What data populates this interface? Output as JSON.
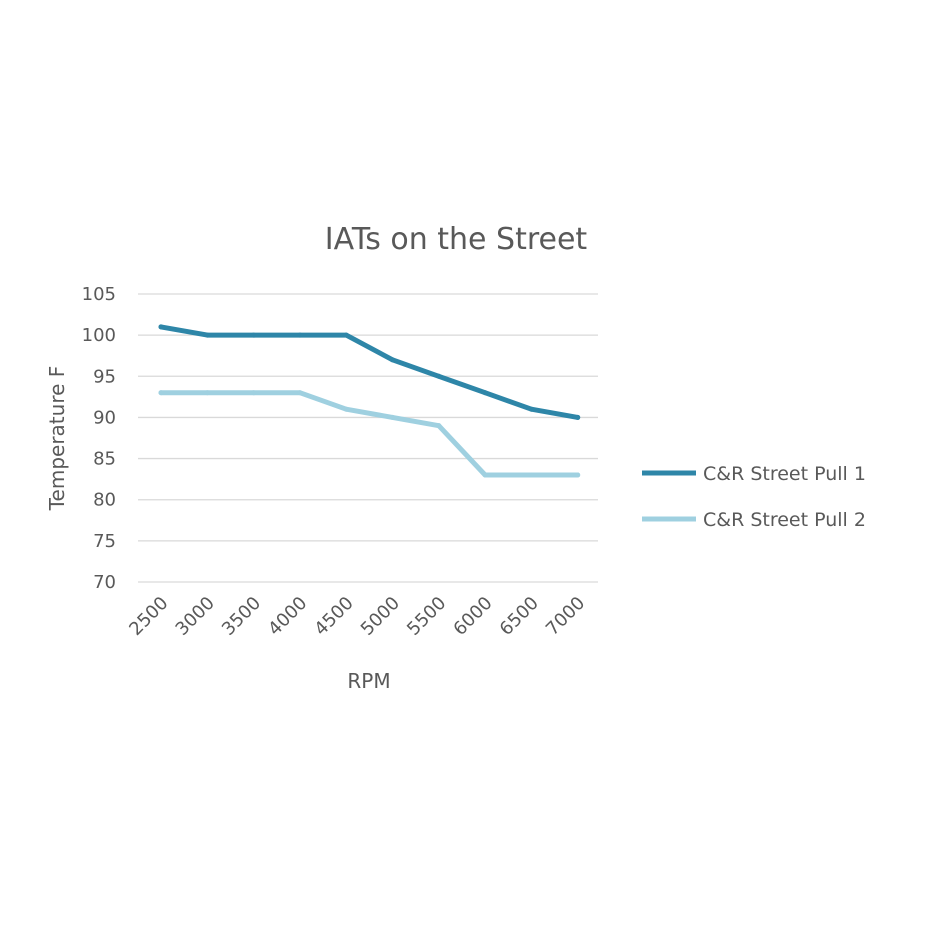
{
  "chart_data": {
    "type": "line",
    "title": "IATs on the Street",
    "xlabel": "RPM",
    "ylabel": "Temperature F",
    "categories": [
      "2500",
      "3000",
      "3500",
      "4000",
      "4500",
      "5000",
      "5500",
      "6000",
      "6500",
      "7000"
    ],
    "ylim": [
      70,
      105
    ],
    "yticks": [
      "70",
      "75",
      "80",
      "85",
      "90",
      "95",
      "100",
      "105"
    ],
    "grid": true,
    "legend_position": "right",
    "series": [
      {
        "name": "C&R Street Pull 1",
        "color": "#2e86a8",
        "values": [
          101,
          100,
          100,
          100,
          100,
          97,
          95,
          93,
          91,
          90
        ]
      },
      {
        "name": "C&R Street Pull 2",
        "color": "#9fd0e0",
        "values": [
          93,
          93,
          93,
          93,
          91,
          90,
          89,
          83,
          83,
          83
        ]
      }
    ]
  }
}
